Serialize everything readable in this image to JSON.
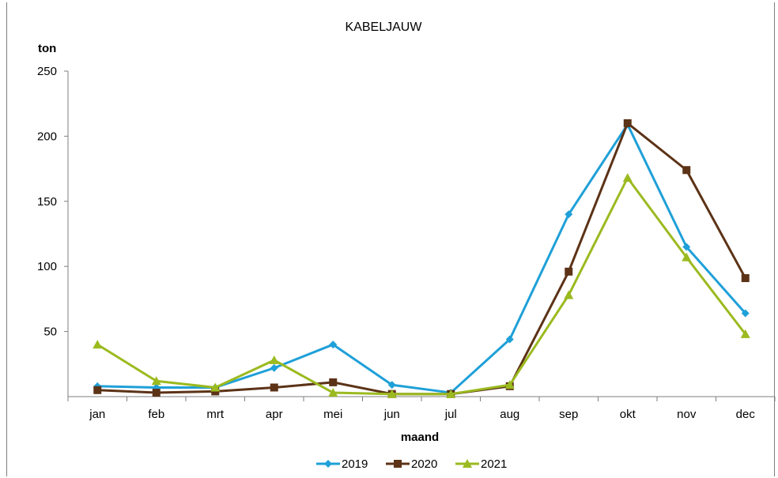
{
  "chart_data": {
    "type": "line",
    "title": "KABELJAUW",
    "ylabel": "ton",
    "xlabel": "maand",
    "ylim": [
      0,
      250
    ],
    "yticks": [
      50,
      100,
      150,
      200,
      250
    ],
    "grid": false,
    "legend_position": "bottom",
    "categories": [
      "jan",
      "feb",
      "mrt",
      "apr",
      "mei",
      "jun",
      "jul",
      "aug",
      "sep",
      "okt",
      "nov",
      "dec"
    ],
    "series": [
      {
        "name": "2019",
        "color": "#1fa0d8",
        "marker": "diamond",
        "values": [
          8,
          7,
          7,
          22,
          40,
          9,
          3,
          44,
          140,
          209,
          115,
          64
        ]
      },
      {
        "name": "2020",
        "color": "#5c3317",
        "marker": "square",
        "values": [
          5,
          3,
          4,
          7,
          11,
          2,
          2,
          8,
          96,
          210,
          174,
          91
        ]
      },
      {
        "name": "2021",
        "color": "#9bba1f",
        "marker": "triangle",
        "values": [
          40,
          12,
          7,
          28,
          3,
          2,
          2,
          9,
          78,
          168,
          107,
          48
        ]
      }
    ]
  }
}
